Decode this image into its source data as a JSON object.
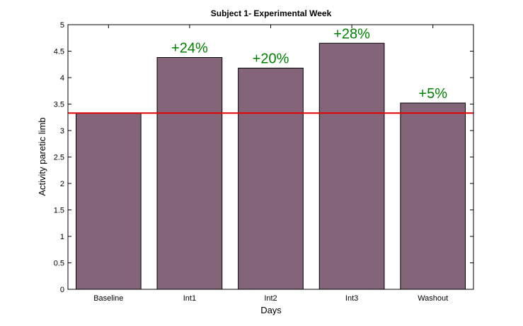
{
  "chart_data": {
    "type": "bar",
    "title": "Subject 1- Experimental Week",
    "xlabel": "Days",
    "ylabel": "Activity paretic limb",
    "categories": [
      "Baseline",
      "Int1",
      "Int2",
      "Int3",
      "Washout"
    ],
    "values": [
      3.33,
      4.38,
      4.18,
      4.65,
      3.52
    ],
    "annotations": [
      "",
      "+24%",
      "+20%",
      "+28%",
      "+5%"
    ],
    "ylim": [
      0,
      5
    ],
    "yticks": [
      "0",
      "0.5",
      "1",
      "1.5",
      "2",
      "2.5",
      "3",
      "3.5",
      "4",
      "4.5",
      "5"
    ],
    "reference_line": 3.33,
    "grid": false,
    "colors": {
      "bar": "#846479",
      "bar_edge": "#000000",
      "reference_line": "#e00000",
      "annotation": "#008000"
    }
  }
}
